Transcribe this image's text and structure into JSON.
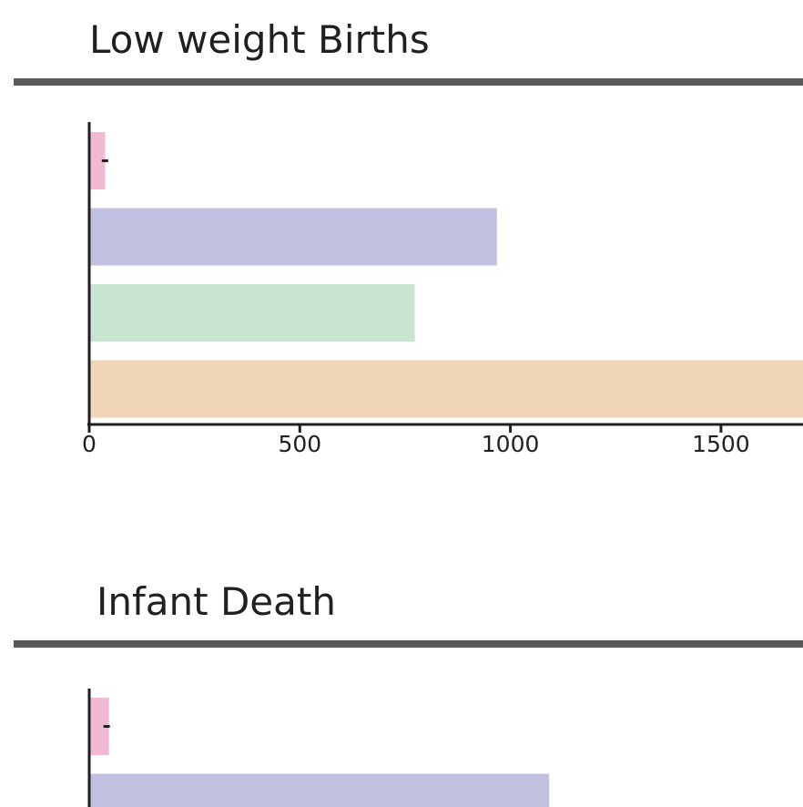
{
  "chart_data": [
    {
      "type": "bar",
      "orientation": "horizontal",
      "title": "Low weight Births",
      "xlim": [
        0,
        1700
      ],
      "xticks": [
        "0",
        "500",
        "1000",
        "1500"
      ],
      "categories": [
        "",
        "",
        "",
        ""
      ],
      "values": [
        38,
        968,
        773,
        1700
      ],
      "error_marks": [
        45,
        null,
        null,
        null
      ],
      "colors": [
        "#f2b9d5",
        "#c0c1e0",
        "#c8e5d1",
        "#f2d6b8"
      ],
      "grid": false,
      "legend": "none"
    },
    {
      "type": "bar",
      "orientation": "horizontal",
      "title": "Infant Death",
      "xlim": [
        0,
        1700
      ],
      "xticks": [],
      "categories": [
        "",
        ""
      ],
      "values": [
        47,
        1092
      ],
      "error_marks": [
        49,
        null
      ],
      "colors": [
        "#f2b9d5",
        "#c0c1e0"
      ],
      "grid": false,
      "legend": "none"
    }
  ],
  "theme": {
    "rule_color": "#58595b",
    "axis_color": "#231f20"
  }
}
